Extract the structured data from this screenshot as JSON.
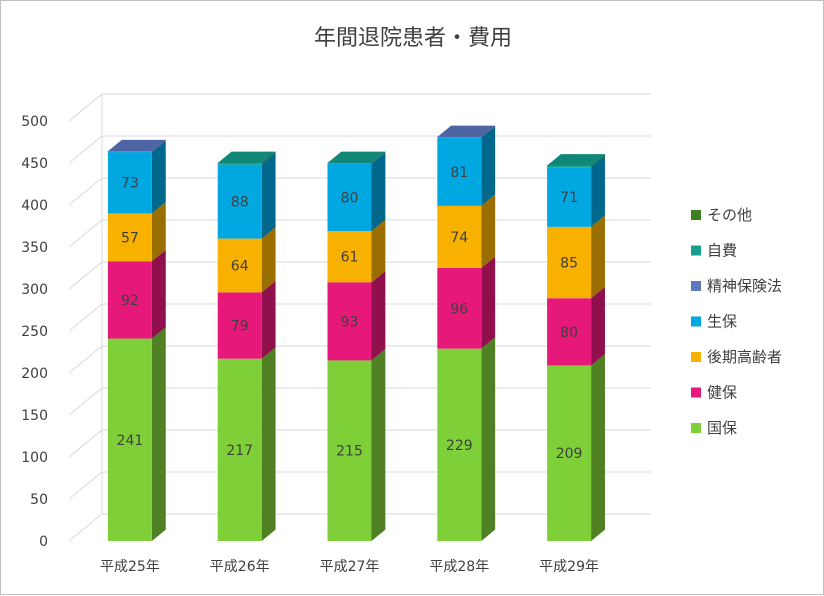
{
  "chart_data": {
    "type": "bar",
    "stacked": true,
    "three_d": true,
    "title": "年間退院患者・費用",
    "categories": [
      "平成25年",
      "平成26年",
      "平成27年",
      "平成28年",
      "平成29年"
    ],
    "ylim": [
      0,
      500
    ],
    "yticks": [
      0,
      50,
      100,
      150,
      200,
      250,
      300,
      350,
      400,
      450,
      500
    ],
    "grid": true,
    "legend_position": "right",
    "series": [
      {
        "name": "国保",
        "color": "#7fcf38",
        "values": [
          241,
          217,
          215,
          229,
          209
        ]
      },
      {
        "name": "健保",
        "color": "#e6197a",
        "values": [
          92,
          79,
          93,
          96,
          80
        ]
      },
      {
        "name": "後期高齢者",
        "color": "#f9b100",
        "values": [
          57,
          64,
          61,
          74,
          85
        ]
      },
      {
        "name": "生保",
        "color": "#00a7e1",
        "values": [
          73,
          88,
          80,
          81,
          71
        ]
      },
      {
        "name": "精神保険法",
        "color": "#5b78c0",
        "values": [
          1,
          0,
          0,
          1,
          0
        ]
      },
      {
        "name": "自費",
        "color": "#14a08c",
        "values": [
          0,
          2,
          1,
          0,
          2
        ]
      },
      {
        "name": "その他",
        "color": "#3f7f24",
        "values": [
          0,
          0,
          0,
          0,
          0
        ]
      }
    ],
    "data_labels_series": [
      "国保",
      "健保",
      "後期高齢者",
      "生保"
    ]
  }
}
